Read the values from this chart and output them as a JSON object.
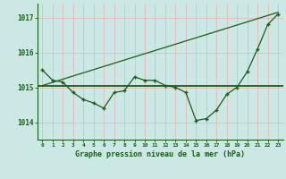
{
  "title": "Graphe pression niveau de la mer (hPa)",
  "bg_color": "#cce8e4",
  "grid_color": "#e8b0b0",
  "line_color": "#1a5c1a",
  "xlim": [
    -0.5,
    23.5
  ],
  "ylim": [
    1013.5,
    1017.4
  ],
  "yticks": [
    1014,
    1015,
    1016,
    1017
  ],
  "xticks": [
    0,
    1,
    2,
    3,
    4,
    5,
    6,
    7,
    8,
    9,
    10,
    11,
    12,
    13,
    14,
    15,
    16,
    17,
    18,
    19,
    20,
    21,
    22,
    23
  ],
  "hours": [
    0,
    1,
    2,
    3,
    4,
    5,
    6,
    7,
    8,
    9,
    10,
    11,
    12,
    13,
    14,
    15,
    16,
    17,
    18,
    19,
    20,
    21,
    22,
    23
  ],
  "pressure": [
    1015.5,
    1015.2,
    1015.15,
    1014.85,
    1014.65,
    1014.55,
    1014.4,
    1014.85,
    1014.9,
    1015.3,
    1015.2,
    1015.2,
    1015.05,
    1015.0,
    1014.85,
    1014.05,
    1014.1,
    1014.35,
    1014.8,
    1015.0,
    1015.45,
    1016.1,
    1016.8,
    1017.1
  ],
  "smooth_y": 1015.05,
  "trend_x0": 0,
  "trend_x1": 23,
  "trend_y0": 1015.05,
  "trend_y1": 1017.15
}
